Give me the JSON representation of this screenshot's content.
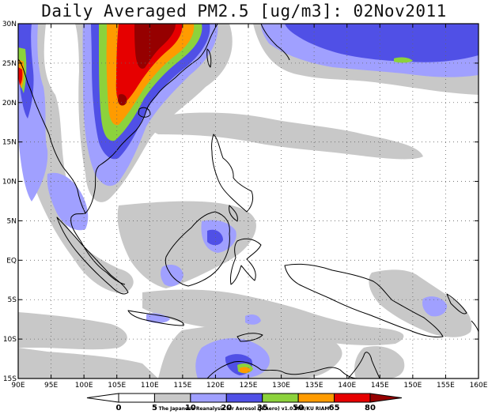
{
  "title": "Daily Averaged PM2.5 [ug/m3]: 02Nov2011",
  "credit": "The Japanese Reanalysis for Aerosol (JRAero) v1.0  MRI/KU RIAM",
  "map": {
    "lon_range": [
      90,
      160
    ],
    "lat_range": [
      -15,
      30
    ],
    "lon_ticks": [
      "90E",
      "95E",
      "100E",
      "105E",
      "110E",
      "115E",
      "120E",
      "125E",
      "130E",
      "135E",
      "140E",
      "145E",
      "150E",
      "155E",
      "160E"
    ],
    "lat_ticks": [
      "30N",
      "25N",
      "20N",
      "15N",
      "10N",
      "5N",
      "EQ",
      "5S",
      "10S",
      "15S"
    ],
    "grid": true
  },
  "colorbar": {
    "levels": [
      "0",
      "5",
      "10",
      "20",
      "35",
      "50",
      "65",
      "80"
    ],
    "colors": [
      "#ffffff",
      "#ffffff",
      "#c8c8c8",
      "#a0a0ff",
      "#5050e6",
      "#8cd23c",
      "#ff9b00",
      "#e60000",
      "#960000"
    ]
  }
}
